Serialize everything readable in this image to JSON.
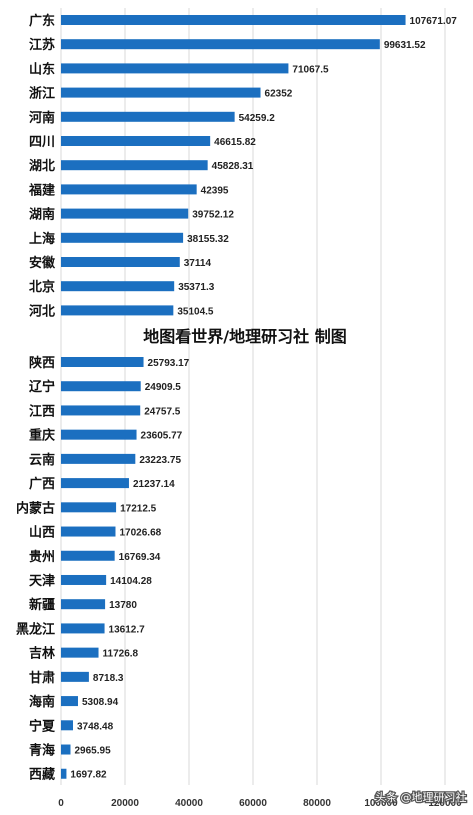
{
  "chart_data": {
    "type": "bar",
    "orientation": "horizontal",
    "title": "地图看世界/地理研习社 制图",
    "categories": [
      "广东",
      "江苏",
      "山东",
      "浙江",
      "河南",
      "四川",
      "湖北",
      "福建",
      "湖南",
      "上海",
      "安徽",
      "北京",
      "河北",
      "陕西",
      "辽宁",
      "江西",
      "重庆",
      "云南",
      "广西",
      "内蒙古",
      "山西",
      "贵州",
      "天津",
      "新疆",
      "黑龙江",
      "吉林",
      "甘肃",
      "海南",
      "宁夏",
      "青海",
      "西藏"
    ],
    "values": [
      107671.07,
      99631.52,
      71067.5,
      62352,
      54259.2,
      46615.82,
      45828.31,
      42395,
      39752.12,
      38155.32,
      37114,
      35371.3,
      35104.5,
      25793.17,
      24909.5,
      24757.5,
      23605.77,
      23223.75,
      21237.14,
      17212.5,
      17026.68,
      16769.34,
      14104.28,
      13780,
      13612.7,
      11726.8,
      8718.3,
      5308.94,
      3748.48,
      2965.95,
      1697.82
    ],
    "value_labels": [
      "107671.07",
      "99631.52",
      "71067.5",
      "62352",
      "54259.2",
      "46615.82",
      "45828.31",
      "42395",
      "39752.12",
      "38155.32",
      "37114",
      "35371.3",
      "35104.5",
      "25793.17",
      "24909.5",
      "24757.5",
      "23605.77",
      "23223.75",
      "21237.14",
      "17212.5",
      "17026.68",
      "16769.34",
      "14104.28",
      "13780",
      "13612.7",
      "11726.8",
      "8718.3",
      "5308.94",
      "3748.48",
      "2965.95",
      "1697.82"
    ],
    "xlim": [
      0,
      120000
    ],
    "xticks": [
      "0",
      "20000",
      "40000",
      "60000",
      "80000",
      "100000",
      "120000"
    ],
    "grid": true,
    "bar_color": "#1b6fc0"
  },
  "watermark": "头条 @地理研习社"
}
